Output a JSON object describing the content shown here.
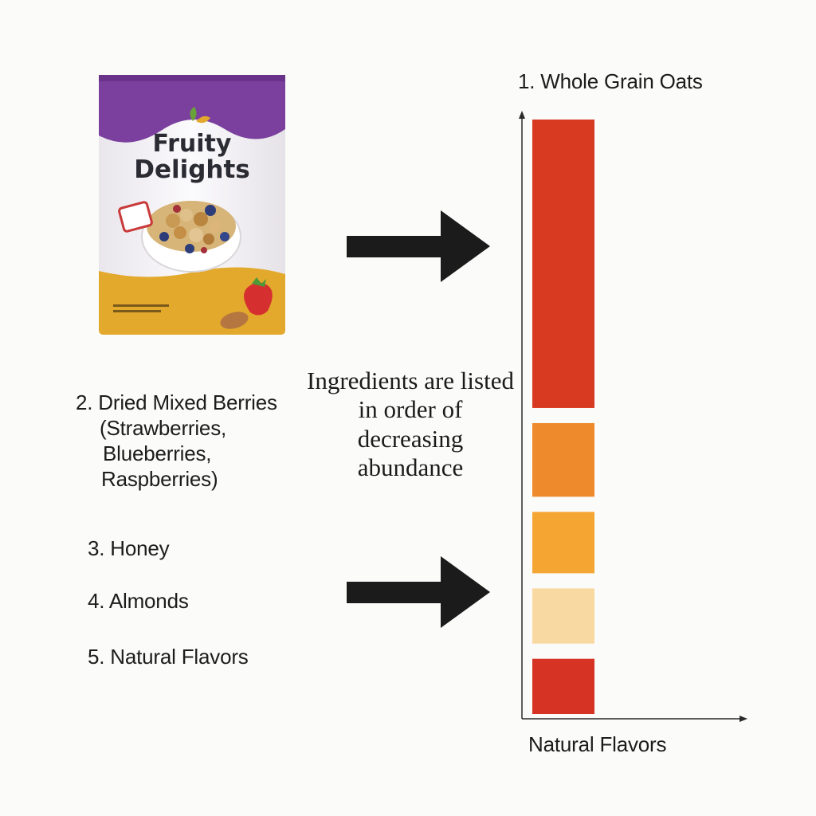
{
  "package": {
    "brand_line1": "Fruity",
    "brand_line2": "Delights",
    "colors": {
      "top": "#7b3f9e",
      "body": "#f4f2f5",
      "bottom": "#e3a92c"
    }
  },
  "ingredients": [
    {
      "label": "1. Whole Grain Oats"
    },
    {
      "label": "2. Dried Mixed Berries",
      "detail": [
        "(Strawberries,",
        "Blueberries,",
        "Raspberries)"
      ]
    },
    {
      "label": "3. Honey"
    },
    {
      "label": "4. Almonds"
    },
    {
      "label": "5. Natural Flavors"
    }
  ],
  "note": "Ingredients are listed in order of decreasing abundance",
  "chart_data": {
    "type": "bar",
    "orientation": "stacked-vertical",
    "categories": [
      "Whole Grain Oats",
      "Dried Mixed Berries",
      "Honey",
      "Almonds",
      "Natural Flavors"
    ],
    "values": [
      47,
      12,
      10,
      9,
      9
    ],
    "colors": [
      "#d83a21",
      "#ee8a2b",
      "#f5a632",
      "#f9d9a2",
      "#d63324"
    ],
    "bottom_label": "Natural Flavors",
    "axis_x_arrow": true,
    "axis_y_arrow": true
  },
  "arrows": [
    {
      "name": "arrow-upper",
      "color": "#1b1b1b"
    },
    {
      "name": "arrow-lower",
      "color": "#1b1b1b"
    }
  ]
}
